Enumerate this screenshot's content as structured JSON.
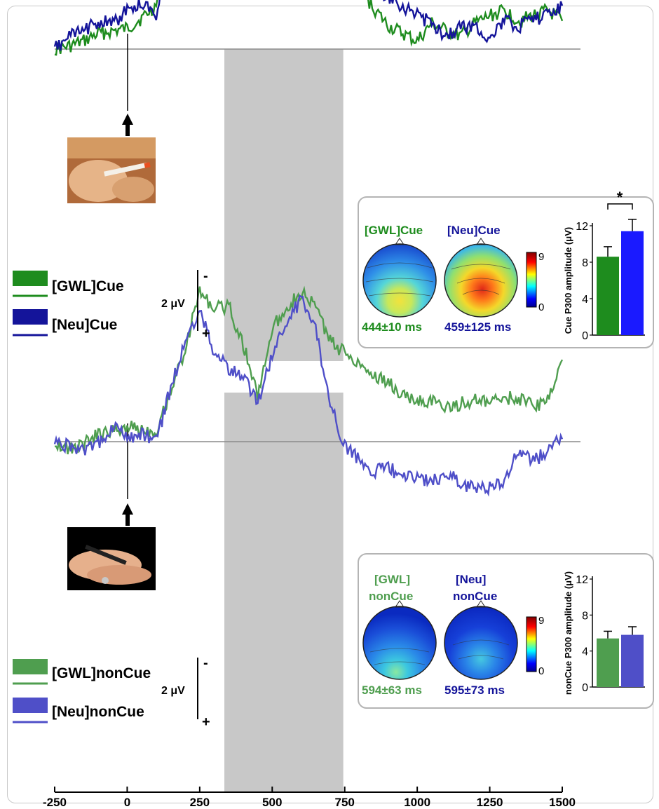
{
  "colors": {
    "gwl_cue": "#1e8c1e",
    "neu_cue": "#14149a",
    "gwl_noncue": "#4f9e4f",
    "neu_noncue": "#4f4fc8",
    "shade": "#c8c8c8",
    "baseline": "#8a8a8a"
  },
  "icons": {
    "top_photo": "cigarette-photo-icon",
    "bottom_photo": "pen-in-hand-photo-icon"
  },
  "chart_data": [
    {
      "id": "cue-erp",
      "type": "line",
      "x": [
        -250,
        -200,
        -150,
        -100,
        -50,
        0,
        50,
        100,
        150,
        200,
        250,
        300,
        350,
        400,
        450,
        500,
        550,
        600,
        650,
        700,
        750,
        800,
        850,
        900,
        950,
        1000,
        1050,
        1100,
        1150,
        1200,
        1250,
        1300,
        1350,
        1400,
        1450,
        1500
      ],
      "series": [
        {
          "name": "[GWL]Cue",
          "values": [
            0.0,
            -0.1,
            -0.3,
            -0.6,
            -0.7,
            -0.8,
            -1.2,
            -1.7,
            -4.5,
            -5.2,
            -6.5,
            -7.4,
            -7.2,
            -6.6,
            -6.1,
            -6.3,
            -6.0,
            -6.2,
            -5.9,
            -5.0,
            -3.7,
            -2.4,
            -1.6,
            -0.9,
            -0.6,
            -0.3,
            -1.0,
            -0.7,
            -0.5,
            -1.0,
            -1.3,
            -1.5,
            -1.1,
            -1.3,
            -1.5,
            -1.1
          ]
        },
        {
          "name": "[Neu]Cue",
          "values": [
            0.0,
            -0.5,
            -0.7,
            -1.1,
            -1.0,
            -1.5,
            -1.8,
            -1.4,
            -4.0,
            -6.0,
            -7.6,
            -7.1,
            -7.8,
            -10.2,
            -10.0,
            -9.6,
            -9.8,
            -9.3,
            -9.0,
            -5.7,
            -3.5,
            -2.4,
            -2.6,
            -2.0,
            -1.7,
            -1.3,
            -1.0,
            -0.5,
            -0.9,
            -0.9,
            -0.4,
            -1.1,
            -0.9,
            -1.1,
            -1.4,
            -1.7
          ]
        }
      ],
      "shade_range": [
        335,
        745
      ],
      "xlim": [
        -250,
        1500
      ],
      "xticks": [
        "-250",
        "0",
        "250",
        "500",
        "750",
        "1000",
        "1250",
        "1500"
      ],
      "grid": false
    },
    {
      "id": "noncue-erp",
      "type": "line",
      "x": [
        -250,
        -200,
        -150,
        -100,
        -50,
        0,
        50,
        100,
        150,
        200,
        250,
        300,
        350,
        400,
        450,
        500,
        550,
        600,
        650,
        700,
        750,
        800,
        850,
        900,
        950,
        1000,
        1050,
        1100,
        1150,
        1200,
        1250,
        1300,
        1350,
        1400,
        1450,
        1500
      ],
      "series": [
        {
          "name": "[GWL]nonCue",
          "values": [
            0.0,
            0.3,
            0.1,
            -0.3,
            -0.4,
            -0.6,
            -0.5,
            -0.4,
            -2.0,
            -3.6,
            -5.9,
            -5.2,
            -5.3,
            -3.8,
            -1.8,
            -4.4,
            -5.3,
            -5.8,
            -5.3,
            -3.9,
            -3.5,
            -3.1,
            -2.6,
            -2.3,
            -1.8,
            -1.6,
            -1.6,
            -1.3,
            -1.5,
            -1.6,
            -1.5,
            -1.7,
            -1.7,
            -1.4,
            -1.6,
            -3.2
          ]
        },
        {
          "name": "[Neu]nonCue",
          "values": [
            0.0,
            0.2,
            0.4,
            0.1,
            -0.6,
            -0.2,
            -0.3,
            0.0,
            -2.1,
            -3.9,
            -5.1,
            -3.5,
            -2.8,
            -2.6,
            -1.5,
            -3.4,
            -4.6,
            -5.6,
            -4.4,
            -1.5,
            0.2,
            0.7,
            1.2,
            1.0,
            1.4,
            1.4,
            1.6,
            1.2,
            1.6,
            1.9,
            1.8,
            1.5,
            0.4,
            0.8,
            0.3,
            -0.1
          ]
        }
      ],
      "shade_range": [
        335,
        745
      ],
      "xlim": [
        -250,
        1500
      ],
      "xticks": [
        "-250",
        "0",
        "250",
        "500",
        "750",
        "1000",
        "1250",
        "1500"
      ],
      "grid": false
    },
    {
      "id": "cue-bars",
      "type": "bar",
      "categories": [
        "[GWL]Cue",
        "[Neu]Cue"
      ],
      "values": [
        8.6,
        11.4
      ],
      "errors": [
        1.1,
        1.3
      ],
      "ylabel": "Cue P300 amplitude (μV)",
      "ylim": [
        0,
        12
      ],
      "yticks": [
        "0",
        "4",
        "8",
        "12"
      ],
      "significance": "*"
    },
    {
      "id": "noncue-bars",
      "type": "bar",
      "categories": [
        "[GWL]nonCue",
        "[Neu]nonCue"
      ],
      "values": [
        5.4,
        5.8
      ],
      "errors": [
        0.8,
        0.9
      ],
      "ylabel": "nonCue P300 amplitude (μV)",
      "ylim": [
        0,
        12
      ],
      "yticks": [
        "0",
        "4",
        "8",
        "12"
      ]
    }
  ],
  "top_panel": {
    "legend": [
      "[GWL]Cue",
      "[Neu]Cue"
    ],
    "scale_label": "2 μV",
    "scale_minus": "-",
    "scale_plus": "+",
    "inset": {
      "left_title": "[GWL]Cue",
      "right_title": "[Neu]Cue",
      "left_latency": "444±10 ms",
      "right_latency": "459±125 ms",
      "colorbar_max": "9",
      "colorbar_min": "0"
    }
  },
  "bottom_panel": {
    "legend": [
      "[GWL]nonCue",
      "[Neu]nonCue"
    ],
    "scale_label": "2 μV",
    "scale_minus": "-",
    "scale_plus": "+",
    "inset": {
      "left_title_1": "[GWL]",
      "left_title_2": "nonCue",
      "right_title_1": "[Neu]",
      "right_title_2": "nonCue",
      "left_latency": "594±63 ms",
      "right_latency": "595±73 ms",
      "colorbar_max": "9",
      "colorbar_min": "0"
    }
  }
}
